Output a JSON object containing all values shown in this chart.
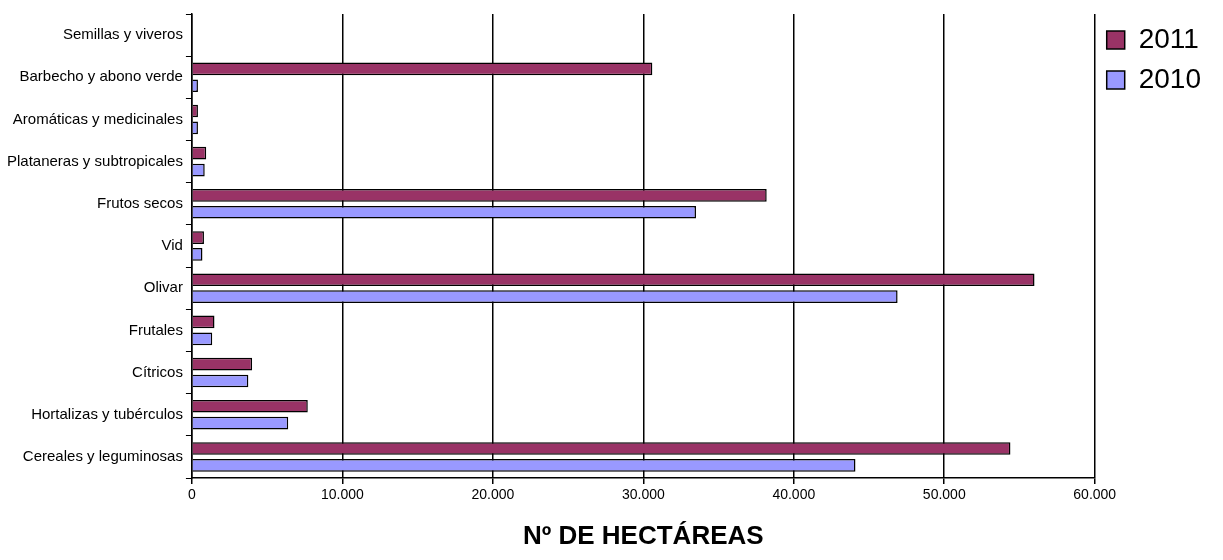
{
  "chart_data": {
    "type": "bar",
    "orientation": "horizontal",
    "xlabel": "Nº DE HECTÁREAS",
    "categories": [
      "Semillas y viveros",
      "Barbecho y abono verde",
      "Aromáticas y medicinales",
      "Plataneras y subtropicales",
      "Frutos secos",
      "Vid",
      "Olivar",
      "Frutales",
      "Cítricos",
      "Hortalizas y tubérculos",
      "Cereales y leguminosas"
    ],
    "series": [
      {
        "name": "2011",
        "color": "#993366",
        "values": [
          0,
          30600,
          400,
          950,
          38200,
          800,
          56000,
          1500,
          4000,
          7700,
          54400
        ]
      },
      {
        "name": "2010",
        "color": "#9999ff",
        "values": [
          0,
          400,
          400,
          850,
          33500,
          700,
          46900,
          1350,
          3750,
          6400,
          44100
        ]
      }
    ],
    "xlim": [
      0,
      60000
    ],
    "xticks": [
      {
        "value": 0,
        "label": "0"
      },
      {
        "value": 10000,
        "label": "10.000"
      },
      {
        "value": 20000,
        "label": "20.000"
      },
      {
        "value": 30000,
        "label": "30.000"
      },
      {
        "value": 40000,
        "label": "40.000"
      },
      {
        "value": 50000,
        "label": "50.000"
      },
      {
        "value": 60000,
        "label": "60.000"
      }
    ],
    "grid": "x",
    "legend": "top right"
  }
}
